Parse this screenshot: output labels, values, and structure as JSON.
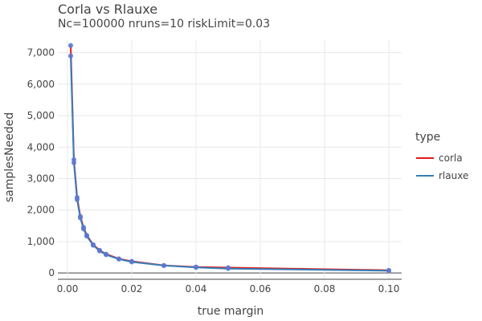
{
  "chart_data": {
    "type": "line",
    "title": "Corla vs Rlauxe",
    "subtitle": "Nc=100000 nruns=10 riskLimit=0.03",
    "xlabel": "true margin",
    "ylabel": "samplesNeeded",
    "xlim": [
      -0.003,
      0.104
    ],
    "ylim": [
      -200,
      7400
    ],
    "xticks": [
      0.0,
      0.02,
      0.04,
      0.06,
      0.08,
      0.1
    ],
    "xtick_labels": [
      "0.00",
      "0.02",
      "0.04",
      "0.06",
      "0.08",
      "0.10"
    ],
    "yticks": [
      0,
      1000,
      2000,
      3000,
      4000,
      5000,
      6000,
      7000
    ],
    "ytick_labels": [
      "0",
      "1,000",
      "2,000",
      "3,000",
      "4,000",
      "5,000",
      "6,000",
      "7,000"
    ],
    "grid": true,
    "legend": {
      "title": "type",
      "position": "right"
    },
    "series": [
      {
        "name": "corla",
        "color": "#e41a1c",
        "x": [
          0.001,
          0.002,
          0.003,
          0.004,
          0.005,
          0.006,
          0.008,
          0.01,
          0.012,
          0.016,
          0.02,
          0.03,
          0.04,
          0.05,
          0.1
        ],
        "y": [
          7230,
          3600,
          2400,
          1800,
          1450,
          1200,
          900,
          720,
          600,
          450,
          370,
          240,
          190,
          170,
          85
        ]
      },
      {
        "name": "rlauxe",
        "color": "#377eb8",
        "x": [
          0.001,
          0.002,
          0.003,
          0.004,
          0.005,
          0.006,
          0.008,
          0.01,
          0.012,
          0.016,
          0.02,
          0.03,
          0.04,
          0.05,
          0.1
        ],
        "y": [
          6900,
          3500,
          2330,
          1750,
          1400,
          1170,
          880,
          700,
          580,
          440,
          350,
          235,
          175,
          140,
          70
        ]
      }
    ]
  }
}
